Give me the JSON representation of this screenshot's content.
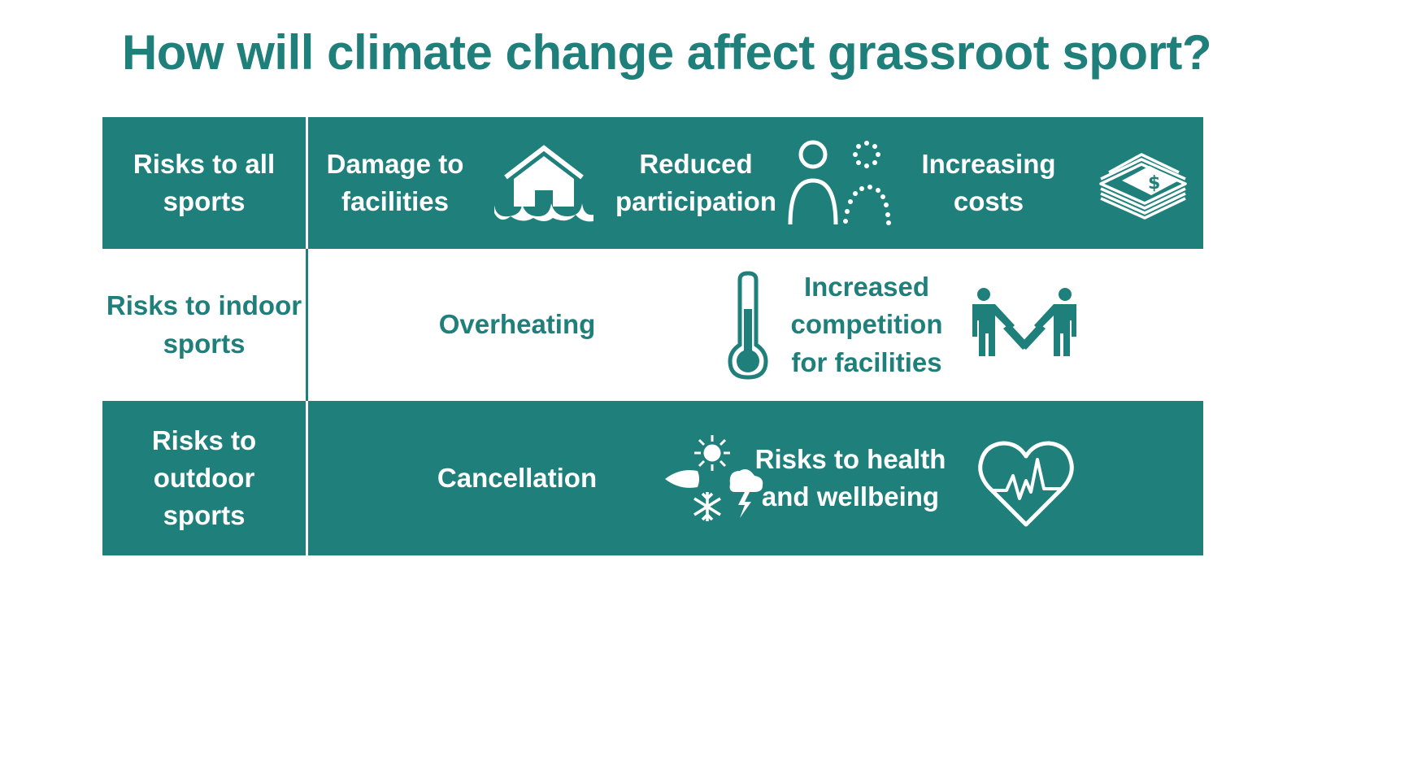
{
  "title": "How will climate change affect grassroot sport?",
  "colors": {
    "teal": "#1f7f7a",
    "white": "#ffffff"
  },
  "rows": [
    {
      "category_lines": [
        "Risks to all",
        "sports"
      ],
      "items": [
        {
          "lines": [
            "Damage to",
            "facilities"
          ],
          "icon": "flooded-house-icon"
        },
        {
          "lines": [
            "Reduced",
            "participation"
          ],
          "icon": "fading-person-icon"
        },
        {
          "lines": [
            "Increasing",
            "costs"
          ],
          "icon": "money-stack-icon"
        }
      ]
    },
    {
      "category_lines": [
        "Risks to indoor",
        "sports"
      ],
      "items": [
        {
          "lines": [
            "Overheating"
          ],
          "icon": "thermometer-icon"
        },
        {
          "lines": [
            "Increased",
            "competition",
            "for facilities"
          ],
          "icon": "tug-of-war-icon"
        }
      ]
    },
    {
      "category_lines": [
        "Risks to",
        "outdoor",
        "sports"
      ],
      "items": [
        {
          "lines": [
            "Cancellation"
          ],
          "icon": "weather-icon"
        },
        {
          "lines": [
            "Risks to health",
            "and wellbeing"
          ],
          "icon": "heart-rate-icon"
        }
      ]
    }
  ]
}
